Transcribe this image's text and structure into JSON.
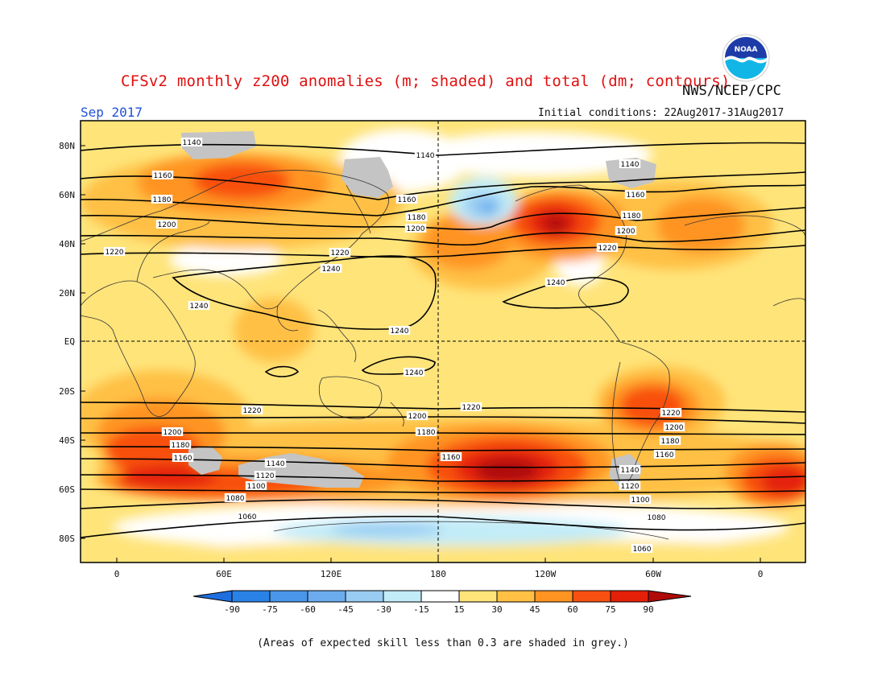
{
  "header": {
    "title": "CFSv2 monthly z200 anomalies (m; shaded) and total (dm; contours)",
    "agency": "NWS/NCEP/CPC",
    "month": "Sep 2017",
    "initial_conditions": "Initial conditions: 22Aug2017-31Aug2017",
    "logo_text": "NOAA"
  },
  "map": {
    "lat_labels": [
      "80N",
      "60N",
      "40N",
      "20N",
      "EQ",
      "20S",
      "40S",
      "60S",
      "80S"
    ],
    "lon_labels": [
      "0",
      "60E",
      "120E",
      "180",
      "120W",
      "60W",
      "0"
    ],
    "contour_labels": [
      "1140",
      "1140",
      "1140",
      "1160",
      "1160",
      "1160",
      "1180",
      "1180",
      "1180",
      "1200",
      "1200",
      "1200",
      "1220",
      "1220",
      "1220",
      "1240",
      "1240",
      "1240",
      "1240",
      "1240",
      "1220",
      "1220",
      "1220",
      "1200",
      "1200",
      "1200",
      "1180",
      "1180",
      "1180",
      "1160",
      "1160",
      "1160",
      "1140",
      "1140",
      "1120",
      "1120",
      "1100",
      "1100",
      "1080",
      "1080",
      "1060",
      "1060"
    ]
  },
  "colorbar": {
    "ticks": [
      "-90",
      "-75",
      "-60",
      "-45",
      "-30",
      "-15",
      "15",
      "30",
      "45",
      "60",
      "75",
      "90"
    ],
    "colors": [
      "#1e6ee0",
      "#2a82e6",
      "#4a96ea",
      "#6cacee",
      "#98ccf2",
      "#c2ecf8",
      "#ffffff",
      "#ffe47a",
      "#ffc044",
      "#ff9422",
      "#f85010",
      "#e42008",
      "#b00a0a"
    ]
  },
  "footnote": "(Areas of expected skill less than 0.3 are shaded in grey.)"
}
